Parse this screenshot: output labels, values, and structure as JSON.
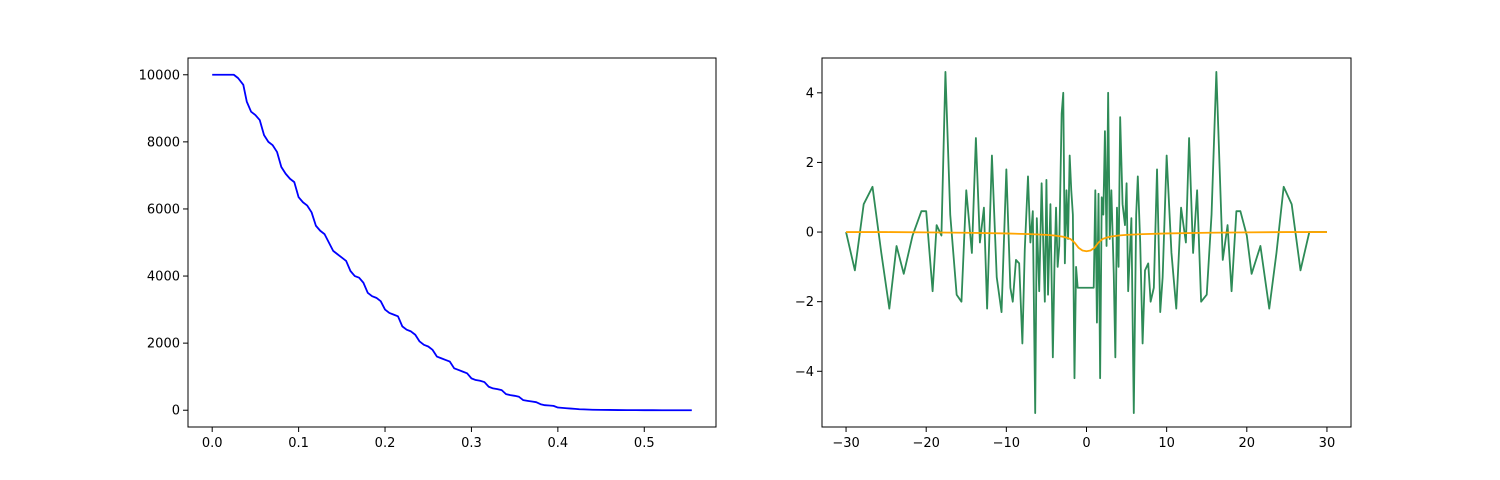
{
  "chart_data": [
    {
      "type": "line",
      "title": "",
      "xlabel": "",
      "ylabel": "",
      "xlim": [
        -0.028,
        0.583
      ],
      "ylim": [
        -500,
        10500
      ],
      "xticks": [
        0.0,
        0.1,
        0.2,
        0.3,
        0.4,
        0.5
      ],
      "xtick_labels": [
        "0.0",
        "0.1",
        "0.2",
        "0.3",
        "0.4",
        "0.5"
      ],
      "yticks": [
        0,
        2000,
        4000,
        6000,
        8000,
        10000
      ],
      "ytick_labels": [
        "0",
        "2000",
        "4000",
        "6000",
        "8000",
        "10000"
      ],
      "grid": false,
      "series": [
        {
          "color": "#0000ff",
          "x": [
            0.0,
            0.025,
            0.03,
            0.036,
            0.04,
            0.045,
            0.05,
            0.055,
            0.06,
            0.065,
            0.07,
            0.075,
            0.08,
            0.085,
            0.09,
            0.095,
            0.1,
            0.105,
            0.11,
            0.115,
            0.12,
            0.125,
            0.13,
            0.135,
            0.14,
            0.145,
            0.15,
            0.155,
            0.16,
            0.165,
            0.17,
            0.175,
            0.18,
            0.185,
            0.19,
            0.195,
            0.2,
            0.205,
            0.21,
            0.215,
            0.22,
            0.225,
            0.23,
            0.235,
            0.24,
            0.245,
            0.25,
            0.255,
            0.26,
            0.265,
            0.27,
            0.275,
            0.28,
            0.285,
            0.29,
            0.295,
            0.3,
            0.305,
            0.31,
            0.315,
            0.32,
            0.325,
            0.33,
            0.335,
            0.34,
            0.345,
            0.35,
            0.355,
            0.36,
            0.365,
            0.37,
            0.375,
            0.38,
            0.385,
            0.39,
            0.395,
            0.4,
            0.405,
            0.41,
            0.415,
            0.42,
            0.425,
            0.43,
            0.44,
            0.45,
            0.46,
            0.47,
            0.48,
            0.49,
            0.5,
            0.51,
            0.52,
            0.53,
            0.54,
            0.555
          ],
          "y": [
            10000,
            10000,
            9900,
            9700,
            9200,
            8900,
            8800,
            8650,
            8200,
            8000,
            7900,
            7700,
            7250,
            7050,
            6900,
            6800,
            6350,
            6200,
            6100,
            5900,
            5500,
            5350,
            5250,
            5000,
            4750,
            4650,
            4550,
            4450,
            4150,
            4000,
            3950,
            3800,
            3500,
            3400,
            3350,
            3250,
            3000,
            2900,
            2850,
            2800,
            2500,
            2400,
            2350,
            2250,
            2050,
            1950,
            1900,
            1800,
            1600,
            1550,
            1500,
            1450,
            1250,
            1200,
            1150,
            1100,
            950,
            900,
            880,
            840,
            700,
            650,
            630,
            600,
            480,
            450,
            430,
            400,
            300,
            280,
            260,
            240,
            180,
            150,
            140,
            130,
            80,
            70,
            60,
            50,
            40,
            30,
            25,
            15,
            10,
            8,
            5,
            3,
            2,
            1,
            1,
            0,
            0,
            0,
            0
          ]
        }
      ]
    },
    {
      "type": "line",
      "title": "",
      "xlabel": "",
      "ylabel": "",
      "xlim": [
        -33,
        33
      ],
      "ylim": [
        -5.6,
        5.0
      ],
      "xticks": [
        -30,
        -20,
        -10,
        0,
        10,
        20,
        30
      ],
      "xtick_labels": [
        "−30",
        "−20",
        "−10",
        "0",
        "10",
        "20",
        "30"
      ],
      "yticks": [
        -4,
        -2,
        0,
        2,
        4
      ],
      "ytick_labels": [
        "−4",
        "−2",
        "0",
        "2",
        "4"
      ],
      "grid": false,
      "series": [
        {
          "color": "#2e8b57",
          "x": [
            -30.0,
            -28.9,
            -27.8,
            -26.7,
            -25.6,
            -24.6,
            -23.7,
            -22.8,
            -21.7,
            -20.6,
            -20.0,
            -19.2,
            -18.7,
            -18.1,
            -17.6,
            -17.0,
            -16.2,
            -15.6,
            -15.0,
            -14.3,
            -13.8,
            -13.3,
            -12.8,
            -12.4,
            -11.8,
            -11.2,
            -10.6,
            -10.0,
            -9.5,
            -9.2,
            -8.8,
            -8.4,
            -8.0,
            -7.7,
            -7.3,
            -7.0,
            -6.7,
            -6.4,
            -6.2,
            -5.9,
            -5.6,
            -5.2,
            -5.0,
            -4.8,
            -4.5,
            -4.2,
            -4.0,
            -3.8,
            -3.6,
            -3.4,
            -3.1,
            -2.9,
            -2.7,
            -2.5,
            -2.3,
            -2.1,
            -1.9,
            -1.7,
            -1.5,
            -1.3,
            -1.1,
            -0.9,
            -0.7,
            -0.4,
            0.0,
            0.4,
            0.7,
            0.9,
            1.1,
            1.3,
            1.5,
            1.7,
            1.9,
            2.1,
            2.3,
            2.5,
            2.7,
            2.9,
            3.1,
            3.4,
            3.6,
            3.8,
            4.0,
            4.2,
            4.5,
            4.8,
            5.0,
            5.2,
            5.6,
            5.9,
            6.2,
            6.4,
            6.7,
            7.0,
            7.3,
            7.7,
            8.0,
            8.4,
            8.8,
            9.2,
            9.5,
            10.0,
            10.6,
            11.2,
            11.8,
            12.4,
            12.8,
            13.3,
            13.8,
            14.3,
            15.0,
            15.6,
            16.2,
            17.0,
            17.6,
            18.1,
            18.7,
            19.2,
            20.0,
            20.6,
            21.7,
            22.8,
            23.7,
            24.6,
            25.6,
            26.7,
            27.8,
            28.9,
            30.0
          ],
          "y": [
            0.0,
            -1.1,
            0.8,
            1.3,
            -0.6,
            -2.2,
            -0.4,
            -1.2,
            -0.1,
            0.6,
            0.6,
            -1.7,
            0.2,
            -0.1,
            4.6,
            0.5,
            -1.8,
            -2.0,
            1.2,
            -0.6,
            2.7,
            -0.3,
            0.7,
            -2.2,
            2.2,
            -1.3,
            -2.3,
            1.8,
            -1.6,
            -2.0,
            -0.8,
            -0.9,
            -3.2,
            -0.5,
            1.6,
            -0.3,
            0.6,
            -5.2,
            0.4,
            -1.7,
            1.4,
            -2.0,
            1.5,
            -1.8,
            0.8,
            -3.6,
            -1.0,
            0.7,
            -1.0,
            -0.4,
            3.4,
            4.0,
            -0.9,
            1.2,
            -0.2,
            2.2,
            1.2,
            0.5,
            -4.2,
            -1.0,
            -1.6,
            -1.6,
            -1.6,
            -1.6,
            -1.6,
            -1.6,
            -1.6,
            -1.6,
            1.2,
            -2.6,
            1.1,
            -4.2,
            1.0,
            0.5,
            2.9,
            -0.4,
            4.0,
            -0.2,
            1.2,
            -1.2,
            -3.6,
            0.7,
            -1.0,
            3.3,
            0.8,
            0.2,
            1.4,
            -1.7,
            0.4,
            -5.2,
            0.5,
            1.6,
            -0.3,
            -3.2,
            -1.1,
            -0.9,
            -2.0,
            -1.6,
            1.8,
            -2.3,
            -1.3,
            2.2,
            -0.6,
            -2.2,
            0.7,
            -0.3,
            2.7,
            -0.6,
            1.2,
            -2.0,
            -1.8,
            0.5,
            4.6,
            -0.8,
            0.2,
            -1.7,
            0.6,
            0.6,
            -0.1,
            -1.2,
            -0.4,
            -2.2,
            -0.6,
            1.3,
            0.8,
            -1.1,
            0.0,
            0.0,
            0.0
          ]
        },
        {
          "color": "#ffa500",
          "x": [
            -30,
            -25,
            -20,
            -15,
            -10,
            -7,
            -5,
            -4,
            -3,
            -2.5,
            -2,
            -1.5,
            -1,
            -0.5,
            0,
            0.5,
            1,
            1.5,
            2,
            2.5,
            3,
            4,
            5,
            7,
            10,
            15,
            20,
            25,
            30
          ],
          "y": [
            0.0,
            0.0,
            -0.01,
            -0.02,
            -0.04,
            -0.06,
            -0.08,
            -0.1,
            -0.13,
            -0.16,
            -0.2,
            -0.3,
            -0.45,
            -0.53,
            -0.55,
            -0.53,
            -0.45,
            -0.3,
            -0.2,
            -0.16,
            -0.13,
            -0.1,
            -0.08,
            -0.06,
            -0.04,
            -0.02,
            -0.01,
            0.0,
            0.0
          ]
        }
      ]
    }
  ]
}
